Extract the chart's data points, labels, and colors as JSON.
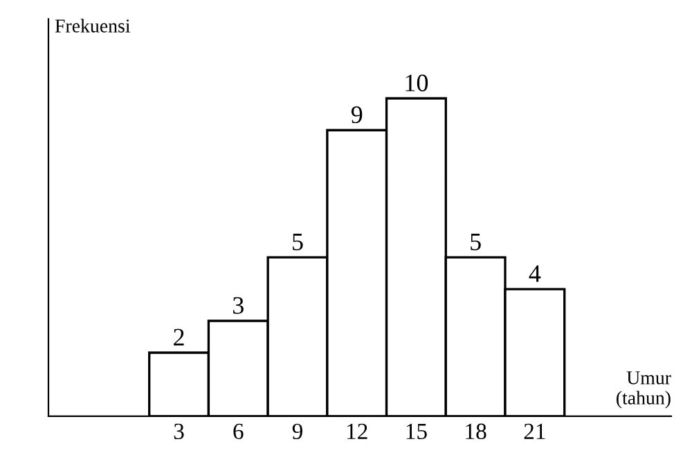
{
  "chart_data": {
    "type": "bar",
    "xlabel": "Umur\n(tahun)",
    "ylabel": "Frekuensi",
    "categories": [
      "3",
      "6",
      "9",
      "12",
      "15",
      "18",
      "21"
    ],
    "values": [
      2,
      3,
      5,
      9,
      10,
      5,
      4
    ],
    "color": "#ffffff",
    "data_labels": true,
    "tick_labels": "x",
    "grid": false,
    "legend": false
  }
}
